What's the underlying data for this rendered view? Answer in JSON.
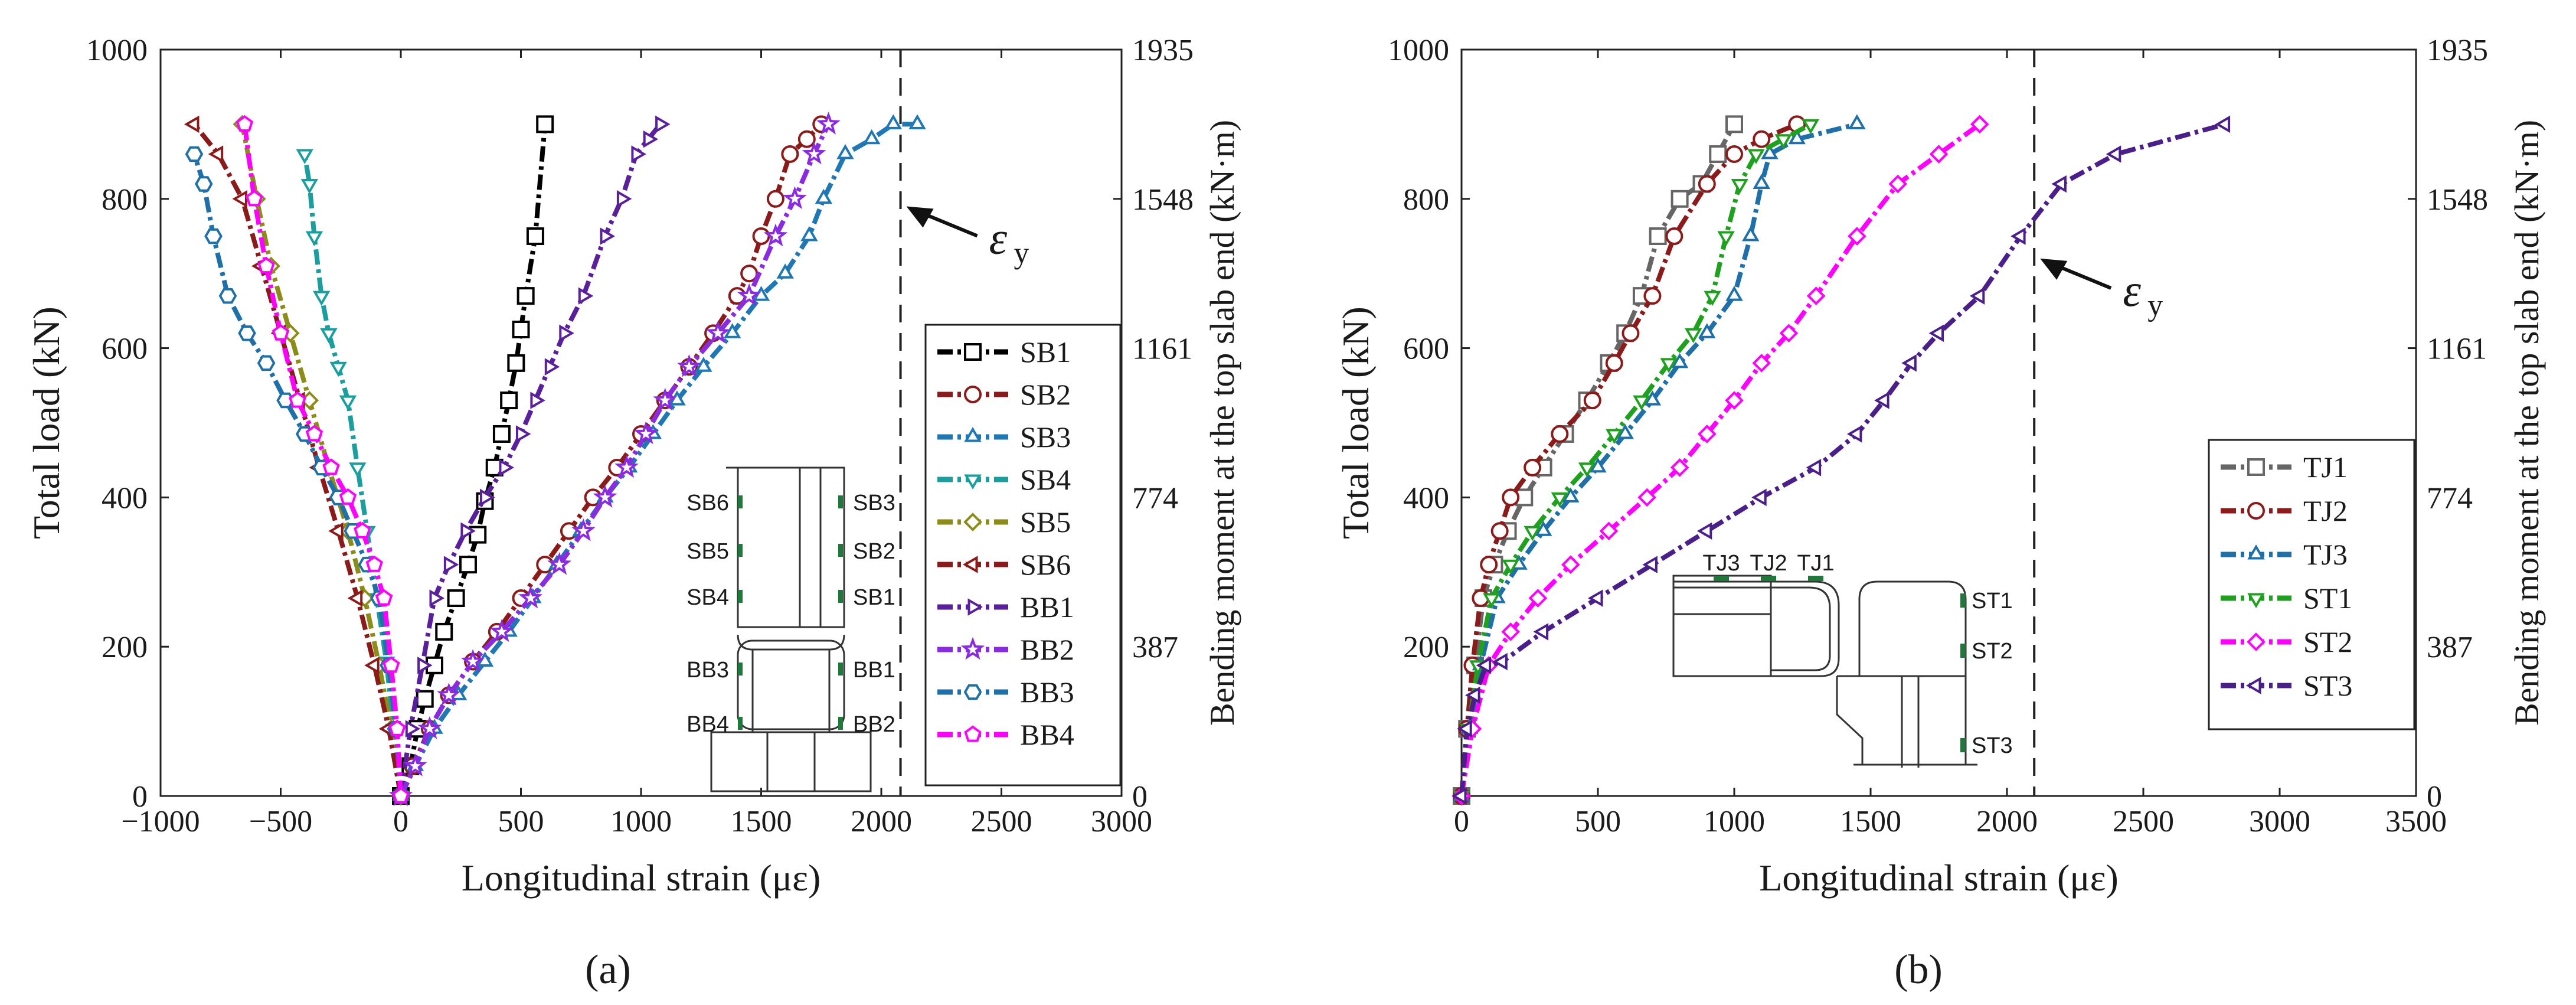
{
  "figure": {
    "panels": [
      {
        "label": "(a)",
        "letter": "a"
      },
      {
        "label": "(b)",
        "letter": "b"
      }
    ]
  },
  "chart_data": [
    {
      "type": "line",
      "panel": "a",
      "xlabel": "Longitudinal strain (με)",
      "ylabel": "Total load  (kN)",
      "y2label": "Bending moment at the top slab end (kN·m)",
      "xlim": [
        -1000,
        3000
      ],
      "ylim": [
        0,
        1000
      ],
      "xticks": [
        -1000,
        -500,
        0,
        500,
        1000,
        1500,
        2000,
        2500,
        3000
      ],
      "yticks": [
        0,
        200,
        400,
        600,
        800,
        1000
      ],
      "y2ticks": [
        {
          "at": 0,
          "label": "0"
        },
        {
          "at": 200,
          "label": "387"
        },
        {
          "at": 400,
          "label": "774"
        },
        {
          "at": 600,
          "label": "1161"
        },
        {
          "at": 800,
          "label": "1548"
        },
        {
          "at": 1000,
          "label": "1935"
        }
      ],
      "yield_strain": {
        "x": 2080,
        "label": "ε",
        "subscript": "y",
        "arrow_to_y": 790
      },
      "inset_labels": [
        "SB6",
        "SB3",
        "SB5",
        "SB2",
        "SB4",
        "SB1",
        "BB3",
        "BB1",
        "BB4",
        "BB2"
      ],
      "series": [
        {
          "name": "SB1",
          "color": "#000000",
          "marker": "square",
          "x": [
            0,
            40,
            70,
            100,
            140,
            180,
            230,
            280,
            320,
            350,
            390,
            420,
            450,
            480,
            500,
            520,
            560,
            600
          ],
          "y": [
            0,
            40,
            90,
            130,
            175,
            220,
            265,
            310,
            350,
            395,
            440,
            485,
            530,
            580,
            625,
            670,
            750,
            900
          ]
        },
        {
          "name": "SB2",
          "color": "#8b1a1a",
          "marker": "circle",
          "x": [
            0,
            50,
            120,
            200,
            300,
            400,
            500,
            600,
            700,
            800,
            900,
            1000,
            1100,
            1200,
            1300,
            1400,
            1450,
            1500,
            1560,
            1620,
            1690,
            1750
          ],
          "y": [
            0,
            40,
            90,
            135,
            180,
            220,
            265,
            310,
            355,
            400,
            440,
            485,
            530,
            575,
            620,
            670,
            700,
            750,
            800,
            860,
            880,
            900
          ]
        },
        {
          "name": "SB3",
          "color": "#1f77b4",
          "marker": "triangle-up",
          "x": [
            0,
            60,
            140,
            240,
            350,
            450,
            550,
            650,
            750,
            850,
            950,
            1050,
            1150,
            1260,
            1380,
            1500,
            1600,
            1700,
            1760,
            1850,
            1960,
            2050,
            2150
          ],
          "y": [
            0,
            40,
            90,
            135,
            180,
            220,
            265,
            310,
            355,
            400,
            440,
            485,
            530,
            575,
            620,
            670,
            700,
            750,
            800,
            860,
            880,
            900,
            900
          ]
        },
        {
          "name": "SB4",
          "color": "#1b9e9e",
          "marker": "triangle-down",
          "x": [
            0,
            -30,
            -60,
            -100,
            -140,
            -180,
            -220,
            -260,
            -300,
            -330,
            -360,
            -380,
            -400
          ],
          "y": [
            0,
            90,
            180,
            265,
            355,
            440,
            530,
            575,
            620,
            670,
            750,
            820,
            860
          ]
        },
        {
          "name": "SB5",
          "color": "#8c8c18",
          "marker": "diamond",
          "x": [
            0,
            -40,
            -90,
            -150,
            -220,
            -300,
            -380,
            -460,
            -540,
            -600,
            -660
          ],
          "y": [
            0,
            90,
            175,
            265,
            355,
            440,
            530,
            620,
            710,
            800,
            900
          ]
        },
        {
          "name": "SB6",
          "color": "#8b1a1a",
          "marker": "triangle-left",
          "x": [
            0,
            -50,
            -110,
            -180,
            -260,
            -340,
            -420,
            -500,
            -580,
            -660,
            -760,
            -860
          ],
          "y": [
            0,
            90,
            175,
            265,
            355,
            440,
            530,
            620,
            710,
            800,
            860,
            900
          ]
        },
        {
          "name": "BB1",
          "color": "#5a1f9a",
          "marker": "triangle-right",
          "x": [
            0,
            40,
            90,
            140,
            200,
            270,
            350,
            430,
            500,
            560,
            620,
            680,
            760,
            850,
            920,
            980,
            1030,
            1080
          ],
          "y": [
            0,
            90,
            175,
            265,
            310,
            355,
            400,
            440,
            485,
            530,
            575,
            620,
            670,
            750,
            800,
            860,
            880,
            900
          ]
        },
        {
          "name": "BB2",
          "color": "#8a2be2",
          "marker": "star",
          "x": [
            0,
            60,
            120,
            200,
            300,
            420,
            540,
            660,
            760,
            850,
            940,
            1020,
            1100,
            1200,
            1320,
            1450,
            1560,
            1640,
            1720,
            1780
          ],
          "y": [
            0,
            40,
            90,
            135,
            180,
            220,
            265,
            310,
            355,
            400,
            440,
            485,
            530,
            575,
            620,
            670,
            750,
            800,
            860,
            900
          ]
        },
        {
          "name": "BB3",
          "color": "#1f6fa8",
          "marker": "hexagon",
          "x": [
            0,
            -20,
            -50,
            -90,
            -140,
            -200,
            -260,
            -330,
            -400,
            -480,
            -560,
            -640,
            -720,
            -780,
            -820,
            -860
          ],
          "y": [
            0,
            90,
            175,
            265,
            310,
            355,
            400,
            440,
            485,
            530,
            580,
            620,
            670,
            750,
            820,
            860
          ]
        },
        {
          "name": "BB4",
          "color": "#ff00ff",
          "marker": "pentagon",
          "x": [
            0,
            -15,
            -40,
            -70,
            -110,
            -160,
            -220,
            -290,
            -360,
            -430,
            -500,
            -560,
            -610,
            -650
          ],
          "y": [
            0,
            90,
            175,
            265,
            310,
            355,
            400,
            440,
            485,
            530,
            620,
            710,
            800,
            900
          ]
        }
      ]
    },
    {
      "type": "line",
      "panel": "b",
      "xlabel": "Longitudinal strain (με)",
      "ylabel": "Total load  (kN)",
      "y2label": "Bending moment at the top slab end (kN·m)",
      "xlim": [
        0,
        3500
      ],
      "ylim": [
        0,
        1000
      ],
      "xticks": [
        0,
        500,
        1000,
        1500,
        2000,
        2500,
        3000,
        3500
      ],
      "yticks": [
        200,
        400,
        600,
        800,
        1000
      ],
      "y2ticks": [
        {
          "at": 0,
          "label": "0"
        },
        {
          "at": 200,
          "label": "387"
        },
        {
          "at": 400,
          "label": "774"
        },
        {
          "at": 600,
          "label": "1161"
        },
        {
          "at": 800,
          "label": "1548"
        },
        {
          "at": 1000,
          "label": "1935"
        }
      ],
      "yield_strain": {
        "x": 2100,
        "label": "ε",
        "subscript": "y",
        "arrow_to_y": 720
      },
      "inset_labels": [
        "TJ3",
        "TJ2",
        "TJ1",
        "ST1",
        "ST2",
        "ST3"
      ],
      "series": [
        {
          "name": "TJ1",
          "color": "#666666",
          "marker": "square",
          "x": [
            0,
            20,
            50,
            80,
            120,
            170,
            230,
            300,
            380,
            460,
            540,
            600,
            660,
            720,
            800,
            880,
            940,
            1000
          ],
          "y": [
            0,
            90,
            175,
            265,
            310,
            355,
            400,
            440,
            485,
            530,
            580,
            620,
            670,
            750,
            800,
            820,
            860,
            900
          ]
        },
        {
          "name": "TJ2",
          "color": "#8b1a1a",
          "marker": "circle",
          "x": [
            0,
            20,
            40,
            70,
            100,
            140,
            180,
            260,
            360,
            480,
            560,
            620,
            700,
            780,
            900,
            1000,
            1100,
            1230
          ],
          "y": [
            0,
            90,
            175,
            265,
            310,
            355,
            400,
            440,
            485,
            530,
            580,
            620,
            670,
            750,
            820,
            860,
            880,
            900
          ]
        },
        {
          "name": "TJ3",
          "color": "#1f6fa8",
          "marker": "triangle-up",
          "x": [
            0,
            30,
            70,
            130,
            210,
            300,
            400,
            500,
            600,
            700,
            800,
            900,
            1000,
            1060,
            1100,
            1130,
            1230,
            1450
          ],
          "y": [
            0,
            90,
            175,
            265,
            310,
            355,
            400,
            440,
            485,
            530,
            580,
            620,
            670,
            750,
            820,
            860,
            880,
            900
          ]
        },
        {
          "name": "ST1",
          "color": "#1fa01f",
          "marker": "triangle-down",
          "x": [
            0,
            25,
            60,
            110,
            180,
            260,
            360,
            460,
            560,
            660,
            760,
            850,
            920,
            970,
            1020,
            1080,
            1180,
            1280
          ],
          "y": [
            0,
            90,
            175,
            265,
            310,
            355,
            400,
            440,
            485,
            530,
            580,
            620,
            670,
            750,
            820,
            860,
            880,
            900
          ]
        },
        {
          "name": "ST2",
          "color": "#ff00ff",
          "marker": "diamond",
          "x": [
            0,
            40,
            100,
            180,
            280,
            400,
            540,
            680,
            800,
            900,
            1000,
            1100,
            1200,
            1300,
            1450,
            1600,
            1750,
            1900
          ],
          "y": [
            0,
            90,
            175,
            220,
            265,
            310,
            355,
            400,
            440,
            485,
            530,
            580,
            620,
            670,
            750,
            820,
            860,
            900
          ]
        },
        {
          "name": "ST3",
          "color": "#4b1f8a",
          "marker": "triangle-left",
          "x": [
            0,
            20,
            50,
            90,
            150,
            300,
            500,
            700,
            900,
            1100,
            1300,
            1450,
            1550,
            1650,
            1750,
            1900,
            2050,
            2200,
            2400,
            2800
          ],
          "y": [
            0,
            90,
            135,
            175,
            180,
            220,
            265,
            310,
            355,
            400,
            440,
            485,
            530,
            580,
            620,
            670,
            750,
            820,
            860,
            900
          ]
        }
      ]
    }
  ]
}
